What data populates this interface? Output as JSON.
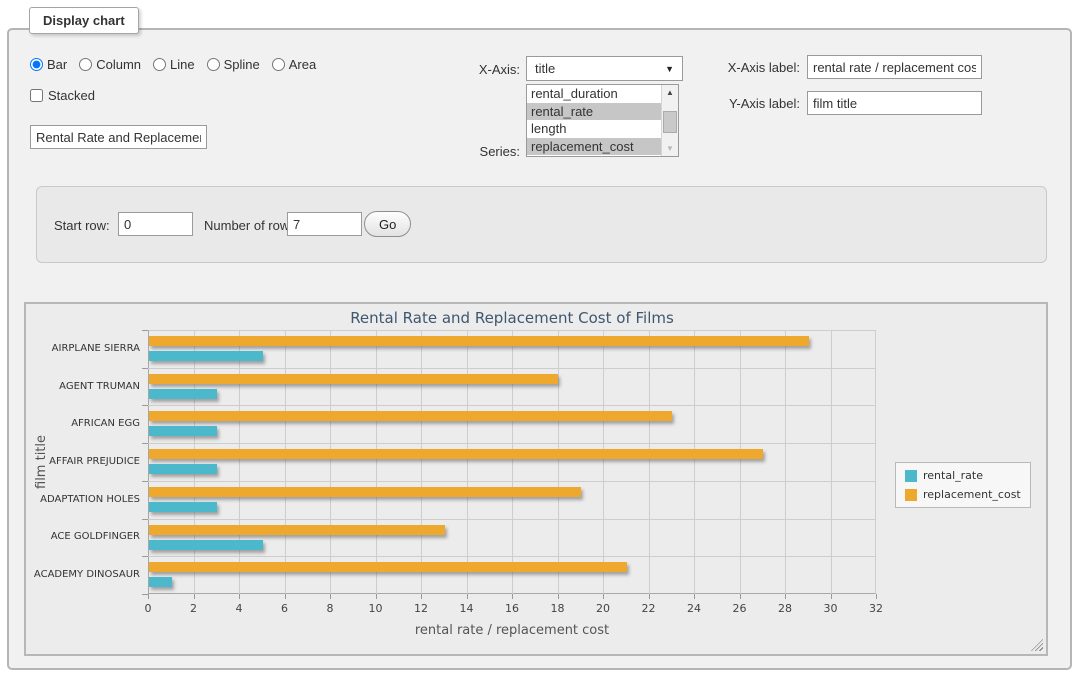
{
  "icons": {
    "chevron_down": "▼",
    "scroll_up": "▲",
    "scroll_down": "▼"
  },
  "panel": {
    "legend_title": "Display chart",
    "chart_types": [
      {
        "label": "Bar",
        "checked": true
      },
      {
        "label": "Column",
        "checked": false
      },
      {
        "label": "Line",
        "checked": false
      },
      {
        "label": "Spline",
        "checked": false
      },
      {
        "label": "Area",
        "checked": false
      }
    ],
    "stacked": {
      "label": "Stacked",
      "checked": false
    },
    "chart_title_value": "Rental Rate and Replacement Cost of Films",
    "x_axis": {
      "label": "X-Axis:",
      "value": "title"
    },
    "series_picker": {
      "label": "Series:",
      "options": [
        {
          "label": "rental_duration",
          "selected": false
        },
        {
          "label": "rental_rate",
          "selected": true
        },
        {
          "label": "length",
          "selected": false
        },
        {
          "label": "replacement_cost",
          "selected": true
        }
      ]
    },
    "x_axis_label_field": {
      "label": "X-Axis label:",
      "value": "rental rate / replacement cost"
    },
    "y_axis_label_field": {
      "label": "Y-Axis label:",
      "value": "film title"
    }
  },
  "row_controls": {
    "start_row": {
      "label": "Start row:",
      "value": "0"
    },
    "number_of_rows": {
      "label": "Number of rows:",
      "value": "7"
    },
    "go_label": "Go"
  },
  "chart_data": {
    "type": "bar",
    "title": "Rental Rate and Replacement Cost of Films",
    "categories": [
      "AIRPLANE SIERRA",
      "AGENT TRUMAN",
      "AFRICAN EGG",
      "AFFAIR PREJUDICE",
      "ADAPTATION HOLES",
      "ACE GOLDFINGER",
      "ACADEMY DINOSAUR"
    ],
    "series": [
      {
        "name": "rental_rate",
        "color": "#4CB8CC",
        "values": [
          4.99,
          2.99,
          2.99,
          2.99,
          2.99,
          4.99,
          0.99
        ]
      },
      {
        "name": "replacement_cost",
        "color": "#EEA82E",
        "values": [
          28.99,
          17.99,
          22.99,
          26.99,
          18.99,
          12.99,
          20.99
        ]
      }
    ],
    "xlabel": "rental rate / replacement cost",
    "ylabel": "film title",
    "xlim": [
      0,
      32
    ],
    "xtick_step": 2,
    "grid": true,
    "legend_position": "right",
    "title_color": "#3E576F",
    "grid_color": "#cdcdcd",
    "plot_background": "#ececec"
  }
}
